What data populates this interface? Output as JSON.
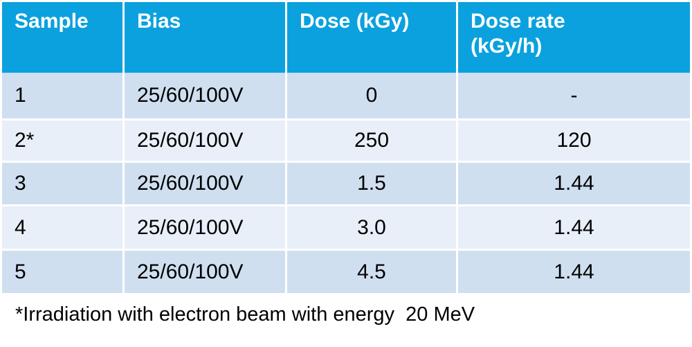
{
  "table": {
    "header": [
      "Sample",
      "Bias",
      "Dose (kGy)",
      "Dose rate (kGy/h)"
    ],
    "rows": [
      [
        "1",
        "25/60/100V",
        "0",
        "-"
      ],
      [
        "2*",
        "25/60/100V",
        "250",
        "120"
      ],
      [
        "3",
        "25/60/100V",
        "1.5",
        "1.44"
      ],
      [
        "4",
        "25/60/100V",
        "3.0",
        "1.44"
      ],
      [
        "5",
        "25/60/100V",
        "4.5",
        "1.44"
      ]
    ]
  },
  "footnote": "*Irradiation with electron beam with energy  20 MeV"
}
